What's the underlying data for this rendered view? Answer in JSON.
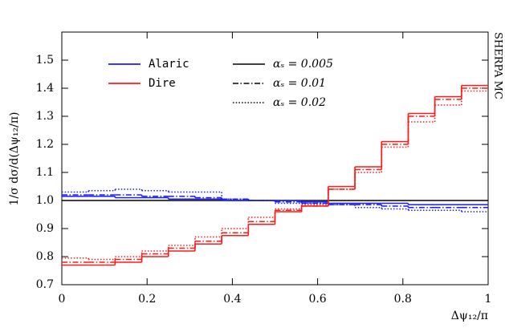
{
  "chart_data": {
    "type": "step",
    "y_label": "1/σ dσ/d(Δψ₁₂/π)",
    "x_label": "Δψ₁₂/π",
    "side_label": "SHERPA MC",
    "bins": [
      0,
      0.0625,
      0.125,
      0.1875,
      0.25,
      0.3125,
      0.375,
      0.4375,
      0.5,
      0.5625,
      0.625,
      0.6875,
      0.75,
      0.8125,
      0.875,
      0.9375,
      1
    ],
    "xlim": [
      0,
      1
    ],
    "xticks": [
      0,
      0.2,
      0.4,
      0.6,
      0.8,
      1
    ],
    "ylim": [
      0.7,
      1.6
    ],
    "yticks": [
      0.7,
      0.8,
      0.9,
      {
        "value": 1,
        "label": "1.0"
      },
      1.1,
      1.2,
      1.3,
      1.4,
      1.5
    ],
    "reference_line": {
      "value": 1,
      "color": "#000000"
    },
    "styles": [
      {
        "label": "αₛ = 0.005",
        "dash": "solid"
      },
      {
        "label": "αₛ = 0.01",
        "dash": "dashdot"
      },
      {
        "label": "αₛ = 0.02",
        "dash": "dotted"
      }
    ],
    "series": [
      {
        "name": "Alaric",
        "color": "#1a1aff",
        "variants": [
          {
            "values": [
              1.015,
              1.015,
              1.01,
              1.01,
              1.005,
              1.005,
              1.0,
              1.0,
              1.0,
              0.995,
              0.99,
              0.99,
              0.99,
              0.985,
              0.985,
              0.985
            ]
          },
          {
            "values": [
              1.02,
              1.02,
              1.02,
              1.015,
              1.015,
              1.01,
              1.005,
              1.0,
              0.995,
              0.99,
              0.985,
              0.985,
              0.98,
              0.975,
              0.975,
              0.975
            ]
          },
          {
            "values": [
              1.03,
              1.035,
              1.04,
              1.035,
              1.03,
              1.03,
              1.005,
              1.0,
              0.99,
              0.99,
              0.985,
              0.975,
              0.97,
              0.965,
              0.965,
              0.96
            ]
          }
        ]
      },
      {
        "name": "Dire",
        "color": "#ff1a1a",
        "variants": [
          {
            "values": [
              0.77,
              0.77,
              0.78,
              0.8,
              0.82,
              0.845,
              0.875,
              0.915,
              0.96,
              0.98,
              1.05,
              1.12,
              1.21,
              1.31,
              1.37,
              1.41
            ]
          },
          {
            "values": [
              0.78,
              0.78,
              0.79,
              0.81,
              0.83,
              0.855,
              0.885,
              0.925,
              0.965,
              0.98,
              1.04,
              1.11,
              1.2,
              1.3,
              1.36,
              1.4
            ]
          },
          {
            "values": [
              0.795,
              0.79,
              0.8,
              0.82,
              0.84,
              0.87,
              0.9,
              0.94,
              0.97,
              0.985,
              1.04,
              1.1,
              1.19,
              1.28,
              1.34,
              1.39
            ]
          }
        ]
      }
    ]
  }
}
